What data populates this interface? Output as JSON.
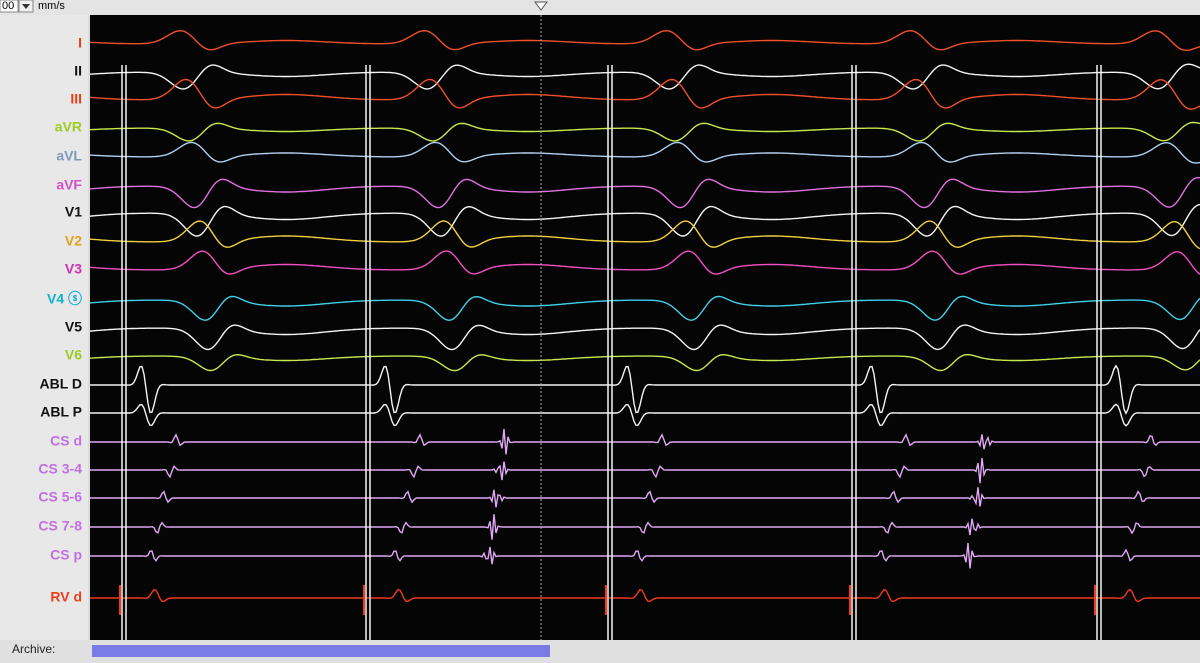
{
  "toolbar": {
    "speed": "00",
    "unit": "mm/s"
  },
  "channels": [
    {
      "label": "I"
    },
    {
      "label": "II"
    },
    {
      "label": "III"
    },
    {
      "label": "aVR"
    },
    {
      "label": "aVL"
    },
    {
      "label": "aVF"
    },
    {
      "label": "V1"
    },
    {
      "label": "V2"
    },
    {
      "label": "V3"
    },
    {
      "label": "V4 ⓢ"
    },
    {
      "label": "V5"
    },
    {
      "label": "V6"
    },
    {
      "label": "ABL D"
    },
    {
      "label": "ABL P"
    },
    {
      "label": "CS d"
    },
    {
      "label": "CS 3-4"
    },
    {
      "label": "CS 5-6"
    },
    {
      "label": "CS 7-8"
    },
    {
      "label": "CS p"
    },
    {
      "label": "RV d"
    }
  ],
  "footer": {
    "archive": "Archive:"
  }
}
